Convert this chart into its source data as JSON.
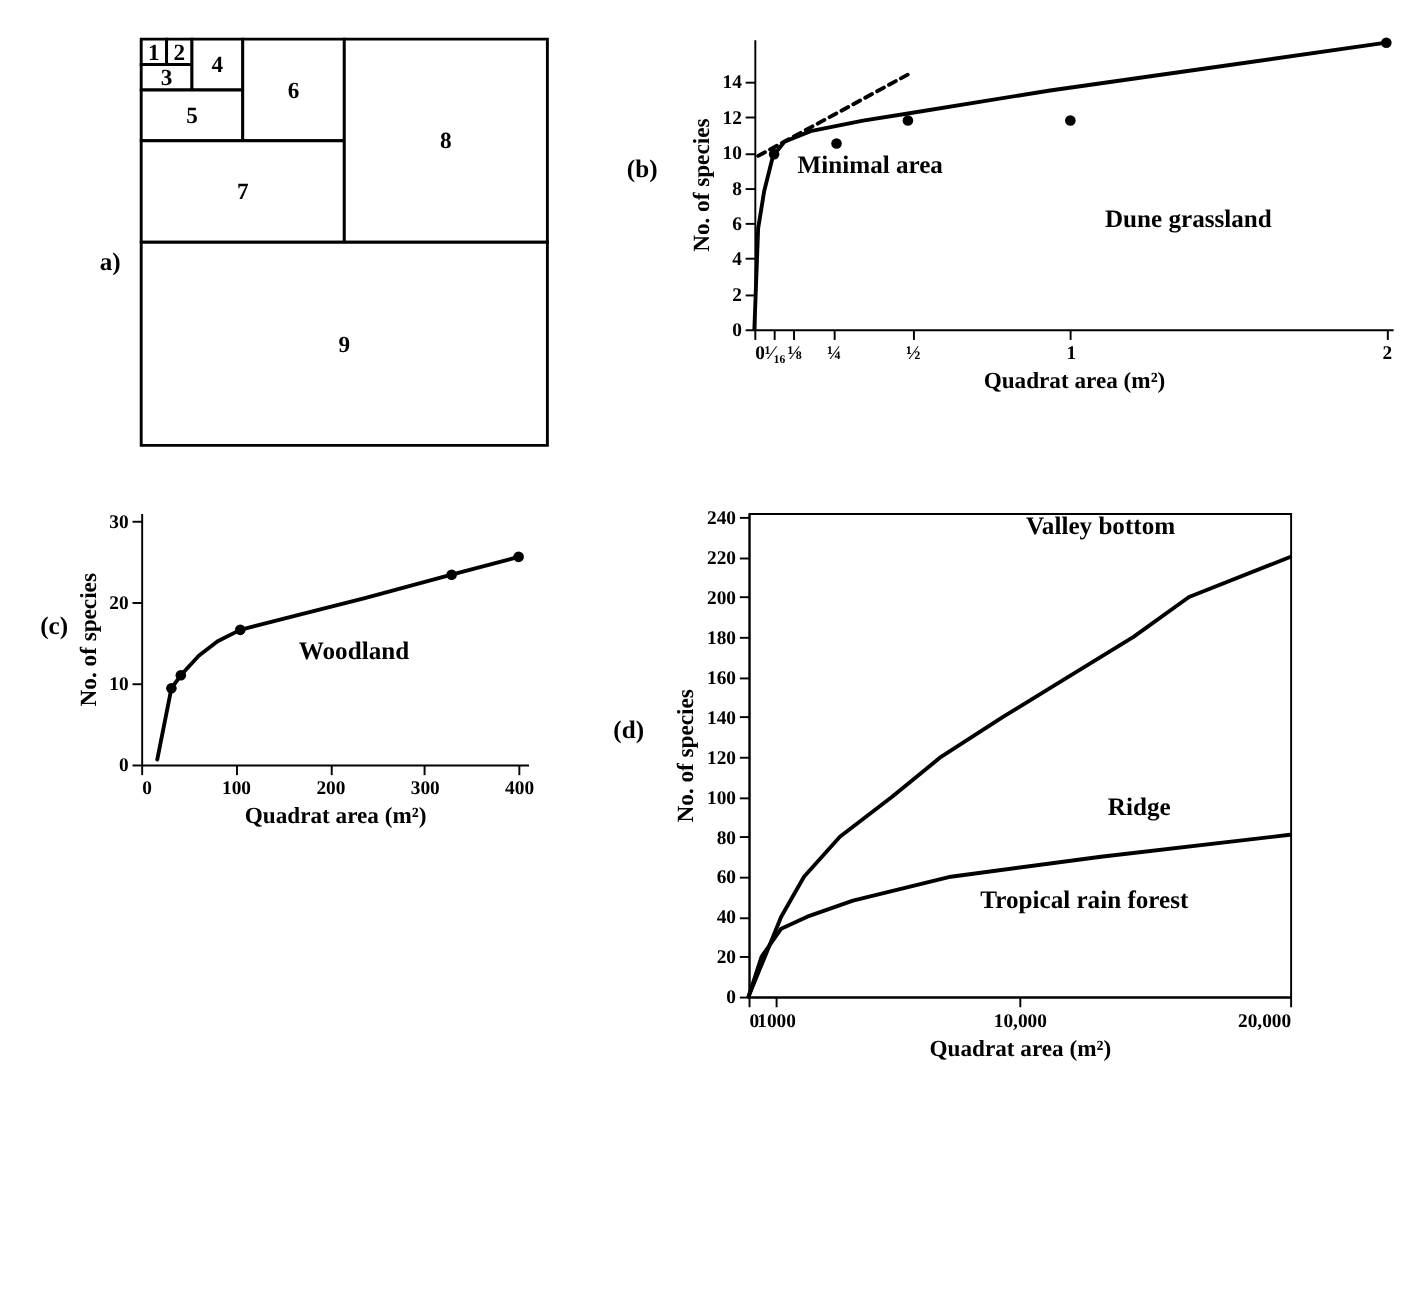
{
  "chart_data": [
    {
      "type": "other",
      "title": "a)",
      "categories": [
        "1",
        "2",
        "3",
        "4",
        "5",
        "6",
        "7",
        "8",
        "9"
      ]
    },
    {
      "type": "line",
      "title": "(b)",
      "xlabel": "Quadrat area (m²)",
      "ylabel": "No. of species",
      "xlim": [
        0,
        2.02
      ],
      "ylim": [
        0,
        16.4
      ],
      "xticks": [
        0,
        {
          "value": 0.0625,
          "label": "¹⁄₁₆"
        },
        {
          "value": 0.125,
          "label": "⅛"
        },
        {
          "value": 0.25,
          "label": "¼"
        },
        {
          "value": 0.5,
          "label": "½"
        },
        1,
        2
      ],
      "yticks": [
        0,
        2,
        4,
        6,
        8,
        10,
        12,
        14
      ],
      "series": [
        {
          "color": "#000000",
          "x": [
            0,
            0.012,
            0.031,
            0.059,
            0.095,
            0.178,
            0.344,
            0.486,
            0.936,
            1.41,
            2.0
          ],
          "values": [
            0,
            5.7,
            7.8,
            9.8,
            10.6,
            11.2,
            11.8,
            12.2,
            13.5,
            14.7,
            16.2
          ]
        },
        {
          "color": "#000000",
          "line_style": "dashed",
          "x": [
            0.012,
            0.486
          ],
          "values": [
            9.8,
            14.4
          ]
        },
        {
          "type": "scatter",
          "marker": "circle",
          "color": "#000000",
          "x": [
            0.0625,
            0.26,
            0.486,
            1.0,
            2.0
          ],
          "values": [
            9.9,
            10.5,
            11.8,
            11.8,
            16.2
          ]
        }
      ],
      "annotations": [
        {
          "text": "Minimal area",
          "x": 0.1,
          "y": 10.8
        },
        "Dune grassland"
      ]
    },
    {
      "type": "line",
      "title": "(c)",
      "xlabel": "Quadrat area (m²)",
      "ylabel": "No. of species",
      "xlim": [
        0,
        410
      ],
      "ylim": [
        0,
        31
      ],
      "xticks": [
        0,
        100,
        200,
        300,
        400
      ],
      "yticks": [
        0,
        10,
        20,
        30
      ],
      "series": [
        {
          "color": "#000000",
          "x": [
            17,
            24,
            32,
            42,
            61,
            81,
            105,
            169,
            237,
            329,
            400
          ],
          "values": [
            0.6,
            4.7,
            9.4,
            11,
            13.4,
            15.2,
            16.6,
            18.5,
            20.5,
            23.4,
            25.6
          ]
        },
        {
          "type": "scatter",
          "marker": "circle",
          "color": "#000000",
          "x": [
            32,
            42,
            105,
            329,
            400
          ],
          "values": [
            9.4,
            11,
            16.6,
            23.4,
            25.6
          ]
        }
      ],
      "annotations": [
        "Woodland"
      ]
    },
    {
      "type": "line",
      "title": "(d)",
      "xlabel": "Quadrat area (m²)",
      "ylabel": "No. of species",
      "xlim": [
        0,
        20000
      ],
      "ylim": [
        0,
        242
      ],
      "xticks": [
        0,
        1000,
        {
          "value": 10000,
          "label": "10,000"
        },
        {
          "value": 20000,
          "label": "20,000"
        }
      ],
      "yticks": [
        0,
        20,
        40,
        60,
        80,
        100,
        120,
        140,
        160,
        180,
        200,
        220,
        240
      ],
      "series": [
        {
          "name": "Valley bottom",
          "color": "#000000",
          "x": [
            0,
            602,
            1205,
            2048,
            3373,
            5301,
            7108,
            9398,
            11807,
            14217,
            16265,
            20000
          ],
          "values": [
            0,
            20,
            40,
            60,
            80,
            100,
            120,
            140,
            160,
            180,
            200,
            220
          ]
        },
        {
          "name": "Ridge",
          "color": "#000000",
          "x": [
            0,
            482,
            1205,
            2169,
            3855,
            7470,
            13012,
            20000
          ],
          "values": [
            0,
            20,
            34,
            40,
            48,
            60,
            70,
            81
          ]
        }
      ],
      "annotations": [
        "Tropical rain forest"
      ]
    }
  ]
}
